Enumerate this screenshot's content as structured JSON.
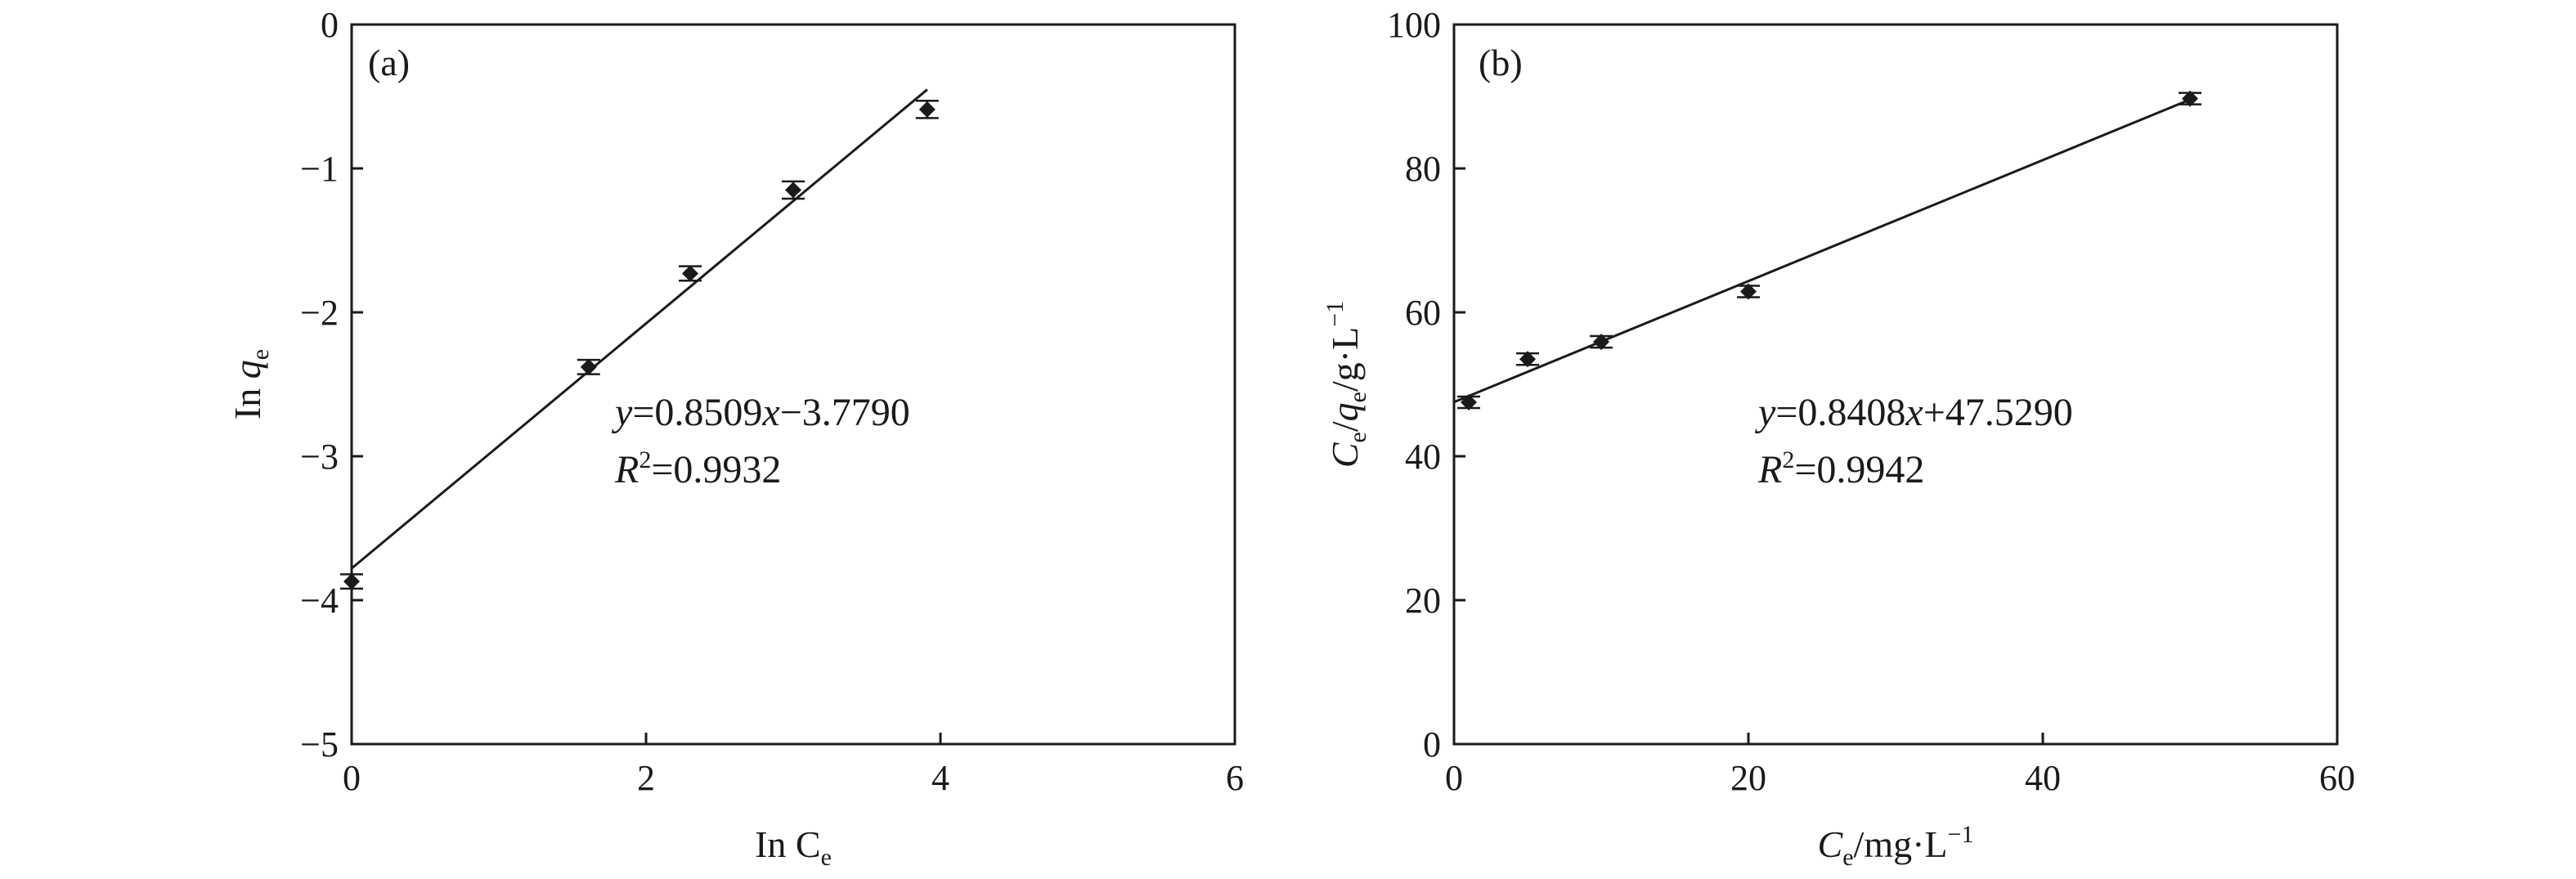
{
  "chart_data": [
    {
      "type": "scatter",
      "panel_label": "(a)",
      "xlabel": {
        "main": "In C",
        "sub": "e"
      },
      "ylabel": {
        "main": "In ",
        "var": "q",
        "sub": "e"
      },
      "xlim": [
        0,
        6
      ],
      "ylim": [
        -5,
        0
      ],
      "xticks": [
        0,
        2,
        4,
        6
      ],
      "yticks": [
        0,
        -1,
        -2,
        -3,
        -4,
        -5
      ],
      "tick_labels_x": [
        "0",
        "2",
        "4",
        "6"
      ],
      "tick_labels_y": [
        "0",
        "−1",
        "−2",
        "−3",
        "−4",
        "−5"
      ],
      "grid": false,
      "points": {
        "x": [
          0,
          1.61,
          2.3,
          3.0,
          3.91
        ],
        "y": [
          -3.87,
          -2.38,
          -1.73,
          -1.15,
          -0.59
        ],
        "error": [
          0.05,
          0.05,
          0.05,
          0.06,
          0.06
        ]
      },
      "fit": {
        "slope": 0.8509,
        "intercept": -3.779,
        "x_range": [
          0,
          3.91
        ]
      },
      "equation": {
        "y": "y",
        "eq": "=0.8509",
        "x": "x",
        "rest": "−3.7790"
      },
      "r2": {
        "R": "R",
        "sup": "2",
        "rest": "=0.9932"
      }
    },
    {
      "type": "scatter",
      "panel_label": "(b)",
      "xlabel": {
        "var": "C",
        "sub": "e",
        "rest": "/mg·L",
        "sup": "−1"
      },
      "ylabel": {
        "var1": "C",
        "sub1": "e",
        "sep": "/",
        "var2": "q",
        "sub2": "e",
        "rest": "/g·L",
        "sup": "−1"
      },
      "xlim": [
        0,
        60
      ],
      "ylim": [
        0,
        100
      ],
      "xticks": [
        0,
        20,
        40,
        60
      ],
      "yticks": [
        0,
        20,
        40,
        60,
        80,
        100
      ],
      "tick_labels_x": [
        "0",
        "20",
        "40",
        "60"
      ],
      "tick_labels_y": [
        "0",
        "20",
        "40",
        "60",
        "80",
        "100"
      ],
      "grid": false,
      "points": {
        "x": [
          1,
          5,
          10,
          20,
          50
        ],
        "y": [
          47.5,
          53.5,
          55.9,
          62.9,
          89.7
        ],
        "error": [
          0.8,
          0.8,
          0.8,
          0.8,
          0.8
        ]
      },
      "fit": {
        "slope": 0.8408,
        "intercept": 47.529,
        "x_range": [
          0,
          50
        ]
      },
      "equation": {
        "y": "y",
        "eq": "=0.8408",
        "x": "x",
        "rest": "+47.5290"
      },
      "r2": {
        "R": "R",
        "sup": "2",
        "rest": "=0.9942"
      }
    }
  ],
  "colors": {
    "ink": "#1a1a1a",
    "marker": "#1a1a1a",
    "background": "#ffffff"
  }
}
